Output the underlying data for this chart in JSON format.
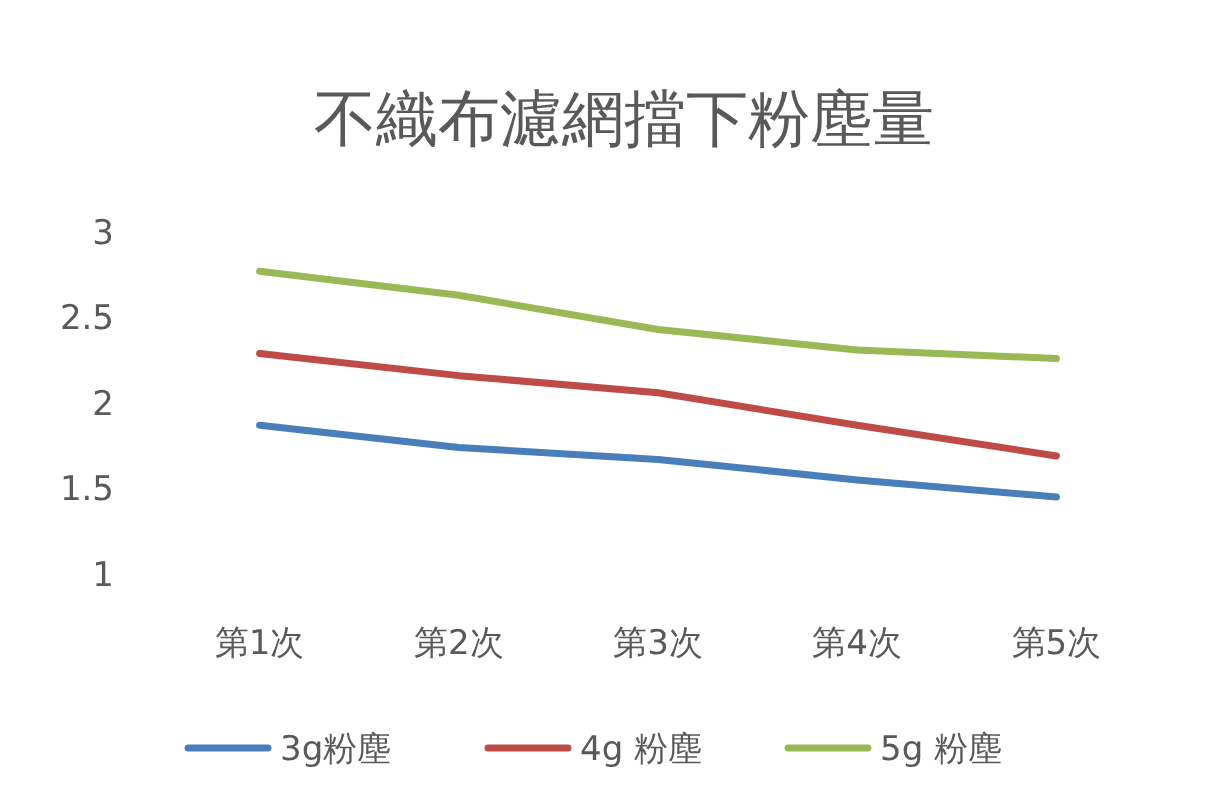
{
  "chart_data": {
    "type": "line",
    "title": "不織布濾網擋下粉塵量",
    "categories": [
      "第1次",
      "第2次",
      "第3次",
      "第4次",
      "第5次"
    ],
    "series": [
      {
        "name": "3g粉塵",
        "color": "#4a7ebb",
        "values": [
          1.87,
          1.74,
          1.67,
          1.55,
          1.45
        ]
      },
      {
        "name": "4g 粉塵",
        "color": "#be4b48",
        "values": [
          2.29,
          2.16,
          2.06,
          1.87,
          1.69
        ]
      },
      {
        "name": "5g 粉塵",
        "color": "#98b954",
        "values": [
          2.77,
          2.63,
          2.43,
          2.31,
          2.26
        ]
      }
    ],
    "ylim": [
      1,
      3
    ],
    "yticks": [
      1,
      1.5,
      2,
      2.5,
      3
    ],
    "grid": false,
    "legend": "bottom",
    "marker": "none",
    "line_style": "solid"
  }
}
